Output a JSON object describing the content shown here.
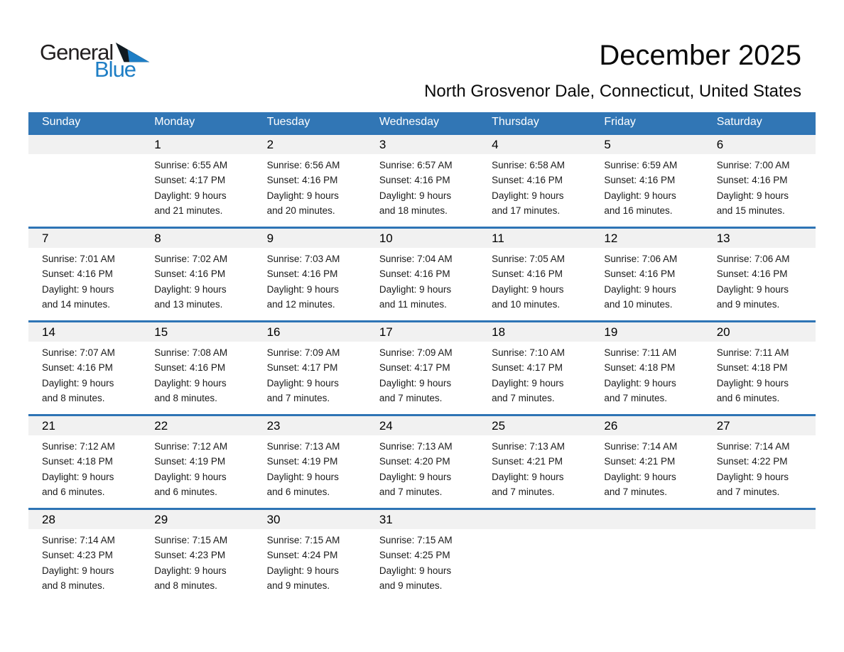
{
  "logo": {
    "word1": "General",
    "word2": "Blue"
  },
  "header": {
    "title": "December 2025",
    "subtitle": "North Grosvenor Dale, Connecticut, United States"
  },
  "labels": {
    "sunrise": "Sunrise:",
    "sunset": "Sunset:",
    "daylight": "Daylight:"
  },
  "colors": {
    "header_bg": "#3176B5",
    "separator": "#2E74B5",
    "day_band": "#F1F1F1",
    "logo_blue": "#1E7EC5",
    "logo_dark": "#101A21",
    "text": "#1A1A1A"
  },
  "calendar": {
    "weekdays": [
      "Sunday",
      "Monday",
      "Tuesday",
      "Wednesday",
      "Thursday",
      "Friday",
      "Saturday"
    ],
    "weeks": [
      [
        null,
        {
          "day": "1",
          "sunrise": "6:55 AM",
          "sunset": "4:17 PM",
          "daylight1": "9 hours",
          "daylight2": "and 21 minutes."
        },
        {
          "day": "2",
          "sunrise": "6:56 AM",
          "sunset": "4:16 PM",
          "daylight1": "9 hours",
          "daylight2": "and 20 minutes."
        },
        {
          "day": "3",
          "sunrise": "6:57 AM",
          "sunset": "4:16 PM",
          "daylight1": "9 hours",
          "daylight2": "and 18 minutes."
        },
        {
          "day": "4",
          "sunrise": "6:58 AM",
          "sunset": "4:16 PM",
          "daylight1": "9 hours",
          "daylight2": "and 17 minutes."
        },
        {
          "day": "5",
          "sunrise": "6:59 AM",
          "sunset": "4:16 PM",
          "daylight1": "9 hours",
          "daylight2": "and 16 minutes."
        },
        {
          "day": "6",
          "sunrise": "7:00 AM",
          "sunset": "4:16 PM",
          "daylight1": "9 hours",
          "daylight2": "and 15 minutes."
        }
      ],
      [
        {
          "day": "7",
          "sunrise": "7:01 AM",
          "sunset": "4:16 PM",
          "daylight1": "9 hours",
          "daylight2": "and 14 minutes."
        },
        {
          "day": "8",
          "sunrise": "7:02 AM",
          "sunset": "4:16 PM",
          "daylight1": "9 hours",
          "daylight2": "and 13 minutes."
        },
        {
          "day": "9",
          "sunrise": "7:03 AM",
          "sunset": "4:16 PM",
          "daylight1": "9 hours",
          "daylight2": "and 12 minutes."
        },
        {
          "day": "10",
          "sunrise": "7:04 AM",
          "sunset": "4:16 PM",
          "daylight1": "9 hours",
          "daylight2": "and 11 minutes."
        },
        {
          "day": "11",
          "sunrise": "7:05 AM",
          "sunset": "4:16 PM",
          "daylight1": "9 hours",
          "daylight2": "and 10 minutes."
        },
        {
          "day": "12",
          "sunrise": "7:06 AM",
          "sunset": "4:16 PM",
          "daylight1": "9 hours",
          "daylight2": "and 10 minutes."
        },
        {
          "day": "13",
          "sunrise": "7:06 AM",
          "sunset": "4:16 PM",
          "daylight1": "9 hours",
          "daylight2": "and 9 minutes."
        }
      ],
      [
        {
          "day": "14",
          "sunrise": "7:07 AM",
          "sunset": "4:16 PM",
          "daylight1": "9 hours",
          "daylight2": "and 8 minutes."
        },
        {
          "day": "15",
          "sunrise": "7:08 AM",
          "sunset": "4:16 PM",
          "daylight1": "9 hours",
          "daylight2": "and 8 minutes."
        },
        {
          "day": "16",
          "sunrise": "7:09 AM",
          "sunset": "4:17 PM",
          "daylight1": "9 hours",
          "daylight2": "and 7 minutes."
        },
        {
          "day": "17",
          "sunrise": "7:09 AM",
          "sunset": "4:17 PM",
          "daylight1": "9 hours",
          "daylight2": "and 7 minutes."
        },
        {
          "day": "18",
          "sunrise": "7:10 AM",
          "sunset": "4:17 PM",
          "daylight1": "9 hours",
          "daylight2": "and 7 minutes."
        },
        {
          "day": "19",
          "sunrise": "7:11 AM",
          "sunset": "4:18 PM",
          "daylight1": "9 hours",
          "daylight2": "and 7 minutes."
        },
        {
          "day": "20",
          "sunrise": "7:11 AM",
          "sunset": "4:18 PM",
          "daylight1": "9 hours",
          "daylight2": "and 6 minutes."
        }
      ],
      [
        {
          "day": "21",
          "sunrise": "7:12 AM",
          "sunset": "4:18 PM",
          "daylight1": "9 hours",
          "daylight2": "and 6 minutes."
        },
        {
          "day": "22",
          "sunrise": "7:12 AM",
          "sunset": "4:19 PM",
          "daylight1": "9 hours",
          "daylight2": "and 6 minutes."
        },
        {
          "day": "23",
          "sunrise": "7:13 AM",
          "sunset": "4:19 PM",
          "daylight1": "9 hours",
          "daylight2": "and 6 minutes."
        },
        {
          "day": "24",
          "sunrise": "7:13 AM",
          "sunset": "4:20 PM",
          "daylight1": "9 hours",
          "daylight2": "and 7 minutes."
        },
        {
          "day": "25",
          "sunrise": "7:13 AM",
          "sunset": "4:21 PM",
          "daylight1": "9 hours",
          "daylight2": "and 7 minutes."
        },
        {
          "day": "26",
          "sunrise": "7:14 AM",
          "sunset": "4:21 PM",
          "daylight1": "9 hours",
          "daylight2": "and 7 minutes."
        },
        {
          "day": "27",
          "sunrise": "7:14 AM",
          "sunset": "4:22 PM",
          "daylight1": "9 hours",
          "daylight2": "and 7 minutes."
        }
      ],
      [
        {
          "day": "28",
          "sunrise": "7:14 AM",
          "sunset": "4:23 PM",
          "daylight1": "9 hours",
          "daylight2": "and 8 minutes."
        },
        {
          "day": "29",
          "sunrise": "7:15 AM",
          "sunset": "4:23 PM",
          "daylight1": "9 hours",
          "daylight2": "and 8 minutes."
        },
        {
          "day": "30",
          "sunrise": "7:15 AM",
          "sunset": "4:24 PM",
          "daylight1": "9 hours",
          "daylight2": "and 9 minutes."
        },
        {
          "day": "31",
          "sunrise": "7:15 AM",
          "sunset": "4:25 PM",
          "daylight1": "9 hours",
          "daylight2": "and 9 minutes."
        },
        null,
        null,
        null
      ]
    ]
  }
}
